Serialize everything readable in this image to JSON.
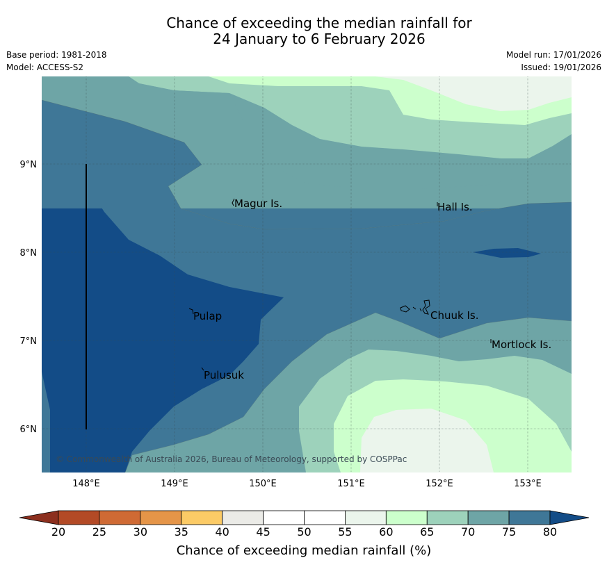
{
  "title": {
    "line1": "Chance of exceeding the median rainfall for",
    "line2": "24 January to 6 February 2026"
  },
  "meta": {
    "base_period": "Base period: 1981-2018",
    "model": "Model: ACCESS-S2",
    "model_run": "Model run: 17/01/2026",
    "issued": "Issued: 19/01/2026"
  },
  "map": {
    "lon_labels": [
      "148°E",
      "149°E",
      "150°E",
      "151°E",
      "152°E",
      "153°E"
    ],
    "lat_labels": [
      "9°N",
      "8°N",
      "7°N",
      "6°N"
    ],
    "places": {
      "magur": "Magur Is.",
      "hall": "Hall Is.",
      "pulap": "Pulap",
      "chuuk": "Chuuk Is.",
      "mortlock": "Mortlock Is.",
      "pulusuk": "Pulusuk"
    },
    "copyright": "© Commonwealth of Australia 2026, Bureau of Meteorology, supported by COSPPac"
  },
  "colorbar": {
    "title": "Chance of exceeding median rainfall (%)",
    "ticks": [
      "20",
      "25",
      "30",
      "35",
      "40",
      "45",
      "50",
      "55",
      "60",
      "65",
      "70",
      "75",
      "80"
    ],
    "colors": [
      "#b34a26",
      "#cf6a34",
      "#e59548",
      "#fccb66",
      "#ebebe7",
      "#ffffff",
      "#ffffff",
      "#ebf5ec",
      "#ccffcc",
      "#9dd2bb",
      "#6ea5a6",
      "#3f7797",
      "#134c87"
    ],
    "under_color": "#8c2f1e",
    "over_color": "#134c87"
  }
}
